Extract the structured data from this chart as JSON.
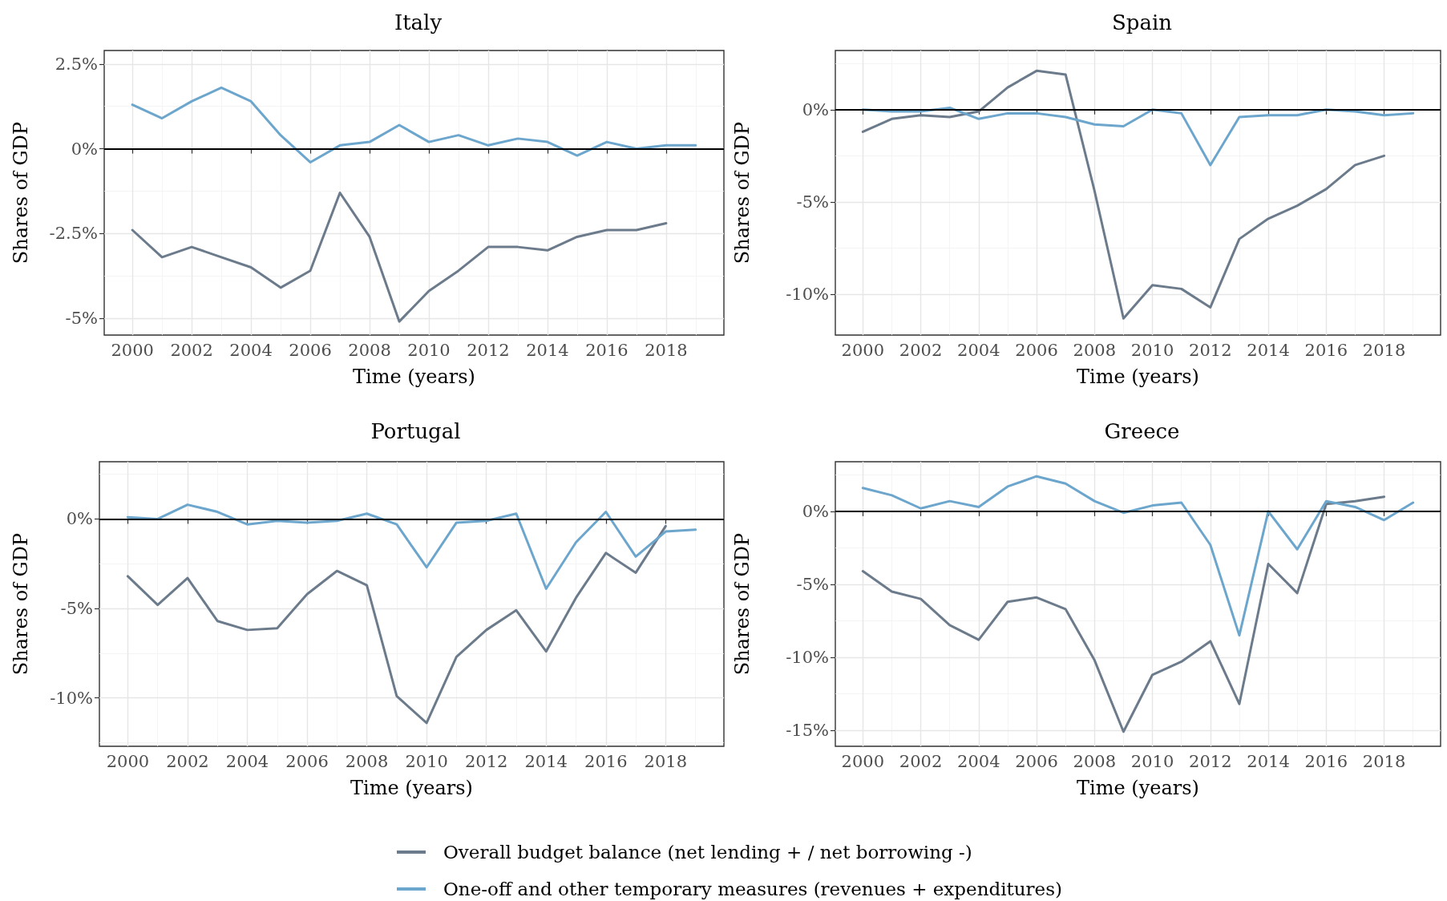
{
  "chart_data": [
    {
      "type": "line",
      "title": "Italy",
      "xlabel": "Time (years)",
      "ylabel": "Shares of GDP",
      "x": [
        2000,
        2001,
        2002,
        2003,
        2004,
        2005,
        2006,
        2007,
        2008,
        2009,
        2010,
        2011,
        2012,
        2013,
        2014,
        2015,
        2016,
        2017,
        2018,
        2019
      ],
      "series": [
        {
          "name": "Overall budget balance (net lending + / net borrowing -)",
          "color": "#6c7b8b",
          "values": [
            -2.4,
            -3.2,
            -2.9,
            -3.2,
            -3.5,
            -4.1,
            -3.6,
            -1.3,
            -2.6,
            -5.1,
            -4.2,
            -3.6,
            -2.9,
            -2.9,
            -3.0,
            -2.6,
            -2.4,
            -2.4,
            -2.2,
            null
          ]
        },
        {
          "name": "One-off and other temporary measures (revenues + expenditures)",
          "color": "#6ca6cd",
          "values": [
            1.3,
            0.9,
            1.4,
            1.8,
            1.4,
            0.4,
            -0.4,
            0.1,
            0.2,
            0.7,
            0.2,
            0.4,
            0.1,
            0.3,
            0.2,
            -0.2,
            0.2,
            0.0,
            0.1,
            0.1
          ]
        }
      ],
      "xlim": [
        1999.05,
        2019.95
      ],
      "xticks": [
        2000,
        2002,
        2004,
        2006,
        2008,
        2010,
        2012,
        2014,
        2016,
        2018
      ],
      "ylim": [
        -5.5,
        2.9
      ],
      "yticks": [
        {
          "value": -5,
          "label": "-5%"
        },
        {
          "value": -2.5,
          "label": "-2.5%"
        },
        {
          "value": 0,
          "label": "0%"
        },
        {
          "value": 2.5,
          "label": "2.5%"
        }
      ],
      "ref_lines": [
        {
          "axis": "y",
          "value": 0,
          "color": "#000000"
        }
      ],
      "grid": true,
      "legend": "bottom"
    },
    {
      "type": "line",
      "title": "Spain",
      "xlabel": "Time (years)",
      "ylabel": "Shares of GDP",
      "x": [
        2000,
        2001,
        2002,
        2003,
        2004,
        2005,
        2006,
        2007,
        2008,
        2009,
        2010,
        2011,
        2012,
        2013,
        2014,
        2015,
        2016,
        2017,
        2018,
        2019
      ],
      "series": [
        {
          "name": "Overall budget balance (net lending + / net borrowing -)",
          "color": "#6c7b8b",
          "values": [
            -1.2,
            -0.5,
            -0.3,
            -0.4,
            -0.1,
            1.2,
            2.1,
            1.9,
            -4.4,
            -11.3,
            -9.5,
            -9.7,
            -10.7,
            -7.0,
            -5.9,
            -5.2,
            -4.3,
            -3.0,
            -2.5,
            null
          ]
        },
        {
          "name": "One-off and other temporary measures (revenues + expenditures)",
          "color": "#6ca6cd",
          "values": [
            0.0,
            -0.1,
            -0.1,
            0.1,
            -0.5,
            -0.2,
            -0.2,
            -0.4,
            -0.8,
            -0.9,
            0.0,
            -0.2,
            -3.0,
            -0.4,
            -0.3,
            -0.3,
            0.0,
            -0.1,
            -0.3,
            -0.2
          ]
        }
      ],
      "xlim": [
        1999.05,
        2019.95
      ],
      "xticks": [
        2000,
        2002,
        2004,
        2006,
        2008,
        2010,
        2012,
        2014,
        2016,
        2018
      ],
      "ylim": [
        -12.2,
        3.2
      ],
      "yticks": [
        {
          "value": -10,
          "label": "-10%"
        },
        {
          "value": -5,
          "label": "-5%"
        },
        {
          "value": 0,
          "label": "0%"
        }
      ],
      "ref_lines": [
        {
          "axis": "y",
          "value": 0,
          "color": "#000000"
        }
      ],
      "grid": true,
      "legend": "bottom"
    },
    {
      "type": "line",
      "title": "Portugal",
      "xlabel": "Time (years)",
      "ylabel": "Shares of GDP",
      "x": [
        2000,
        2001,
        2002,
        2003,
        2004,
        2005,
        2006,
        2007,
        2008,
        2009,
        2010,
        2011,
        2012,
        2013,
        2014,
        2015,
        2016,
        2017,
        2018,
        2019
      ],
      "series": [
        {
          "name": "Overall budget balance (net lending + / net borrowing -)",
          "color": "#6c7b8b",
          "values": [
            -3.2,
            -4.8,
            -3.3,
            -5.7,
            -6.2,
            -6.1,
            -4.2,
            -2.9,
            -3.7,
            -9.9,
            -11.4,
            -7.7,
            -6.2,
            -5.1,
            -7.4,
            -4.4,
            -1.9,
            -3.0,
            -0.4,
            null
          ]
        },
        {
          "name": "One-off and other temporary measures (revenues + expenditures)",
          "color": "#6ca6cd",
          "values": [
            0.1,
            0.0,
            0.8,
            0.4,
            -0.3,
            -0.1,
            -0.2,
            -0.1,
            0.3,
            -0.3,
            -2.7,
            -0.2,
            -0.1,
            0.3,
            -3.9,
            -1.3,
            0.4,
            -2.1,
            -0.7,
            -0.6
          ]
        }
      ],
      "xlim": [
        1999.05,
        2019.95
      ],
      "xticks": [
        2000,
        2002,
        2004,
        2006,
        2008,
        2010,
        2012,
        2014,
        2016,
        2018
      ],
      "ylim": [
        -12.7,
        3.2
      ],
      "yticks": [
        {
          "value": -10,
          "label": "-10%"
        },
        {
          "value": -5,
          "label": "-5%"
        },
        {
          "value": 0,
          "label": "0%"
        }
      ],
      "ref_lines": [
        {
          "axis": "y",
          "value": 0,
          "color": "#000000"
        }
      ],
      "grid": true,
      "legend": "bottom"
    },
    {
      "type": "line",
      "title": "Greece",
      "xlabel": "Time (years)",
      "ylabel": "Shares of GDP",
      "x": [
        2000,
        2001,
        2002,
        2003,
        2004,
        2005,
        2006,
        2007,
        2008,
        2009,
        2010,
        2011,
        2012,
        2013,
        2014,
        2015,
        2016,
        2017,
        2018,
        2019
      ],
      "series": [
        {
          "name": "Overall budget balance (net lending + / net borrowing -)",
          "color": "#6c7b8b",
          "values": [
            -4.1,
            -5.5,
            -6.0,
            -7.8,
            -8.8,
            -6.2,
            -5.9,
            -6.7,
            -10.2,
            -15.1,
            -11.2,
            -10.3,
            -8.9,
            -13.2,
            -3.6,
            -5.6,
            0.5,
            0.7,
            1.0,
            null
          ]
        },
        {
          "name": "One-off and other temporary measures (revenues + expenditures)",
          "color": "#6ca6cd",
          "values": [
            1.6,
            1.1,
            0.2,
            0.7,
            0.3,
            1.7,
            2.4,
            1.9,
            0.7,
            -0.1,
            0.4,
            0.6,
            -2.3,
            -8.5,
            0.0,
            -2.6,
            0.7,
            0.3,
            -0.6,
            0.6
          ]
        }
      ],
      "xlim": [
        1999.05,
        2019.95
      ],
      "xticks": [
        2000,
        2002,
        2004,
        2006,
        2008,
        2010,
        2012,
        2014,
        2016,
        2018
      ],
      "ylim": [
        -16.1,
        3.4
      ],
      "yticks": [
        {
          "value": -15,
          "label": "-15%"
        },
        {
          "value": -10,
          "label": "-10%"
        },
        {
          "value": -5,
          "label": "-5%"
        },
        {
          "value": 0,
          "label": "0%"
        }
      ],
      "ref_lines": [
        {
          "axis": "y",
          "value": 0,
          "color": "#000000"
        }
      ],
      "grid": true,
      "legend": "bottom"
    }
  ]
}
